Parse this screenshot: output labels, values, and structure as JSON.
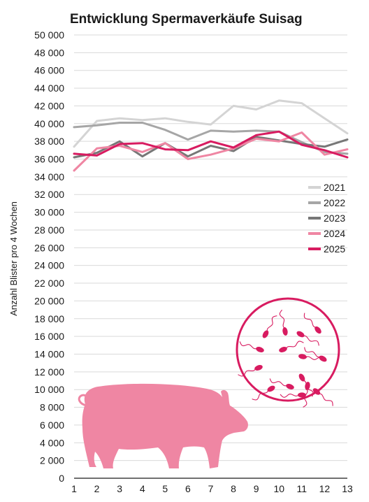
{
  "chart_data": {
    "type": "line",
    "title": "Entwicklung Spermaverkäufe Suisag",
    "xlabel": "",
    "ylabel": "Anzahl Blister pro 4 Wochen",
    "x": [
      1,
      2,
      3,
      4,
      5,
      6,
      7,
      8,
      9,
      10,
      11,
      12,
      13
    ],
    "xlim": [
      1,
      13
    ],
    "ylim": [
      0,
      50000
    ],
    "yticks": [
      0,
      2000,
      4000,
      6000,
      8000,
      10000,
      12000,
      14000,
      16000,
      18000,
      20000,
      22000,
      24000,
      26000,
      28000,
      30000,
      32000,
      34000,
      36000,
      38000,
      40000,
      42000,
      44000,
      46000,
      48000,
      50000
    ],
    "ytick_labels": [
      "0",
      "2 000",
      "4 000",
      "6 000",
      "8 000",
      "10 000",
      "12 000",
      "14 000",
      "16 000",
      "18 000",
      "20 000",
      "22 000",
      "24 000",
      "26 000",
      "28 000",
      "30 000",
      "32 000",
      "34 000",
      "36 000",
      "38 000",
      "40 000",
      "42 000",
      "44 000",
      "46 000",
      "48 000",
      "50 000"
    ],
    "grid": true,
    "legend_position": "right",
    "series": [
      {
        "name": "2021",
        "color": "#d4d4d4",
        "values": [
          37400,
          40300,
          40600,
          40400,
          40600,
          40200,
          39900,
          42000,
          41600,
          42600,
          42300,
          40600,
          38900
        ]
      },
      {
        "name": "2022",
        "color": "#a6a6a6",
        "values": [
          39600,
          39800,
          40100,
          40100,
          39300,
          38200,
          39200,
          39100,
          39200,
          39100,
          37900,
          36800,
          36600
        ]
      },
      {
        "name": "2023",
        "color": "#777777",
        "values": [
          36200,
          36700,
          38000,
          36300,
          37800,
          36300,
          37500,
          36900,
          38500,
          38100,
          37700,
          37400,
          38200
        ]
      },
      {
        "name": "2024",
        "color": "#ef86a3",
        "values": [
          34700,
          37200,
          37500,
          36800,
          37800,
          36000,
          36500,
          37200,
          38300,
          38000,
          39000,
          36500,
          37100
        ]
      },
      {
        "name": "2025",
        "color": "#d81b60",
        "values": [
          36600,
          36400,
          37700,
          37800,
          37100,
          37000,
          38000,
          37300,
          38700,
          39100,
          37600,
          37000,
          36200
        ]
      }
    ],
    "decorations": {
      "pig_color": "#ef86a3",
      "sperm_circle_color": "#d81b60"
    }
  }
}
